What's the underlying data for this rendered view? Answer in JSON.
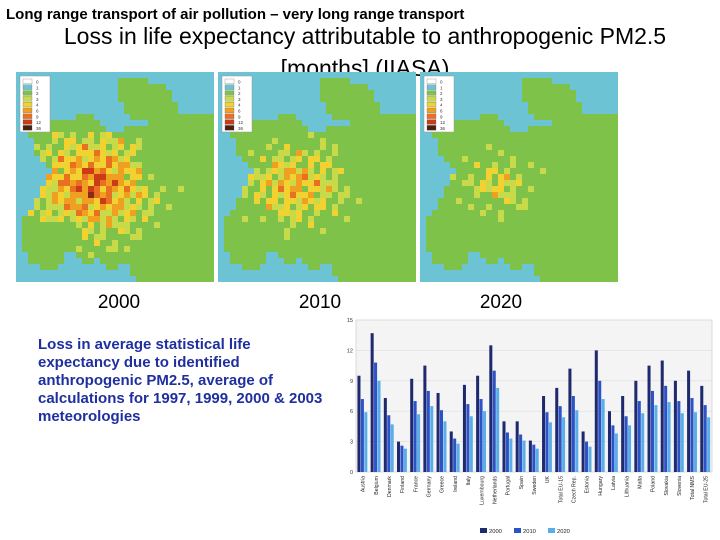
{
  "header": {
    "top_title": "Long range transport of air pollution – very long range transport",
    "subtitle": "Loss in life expectancy attributable to anthropogenic PM2.5 [months] (IIASA)"
  },
  "maps": [
    {
      "year": "2000",
      "legend": [
        "0",
        "1",
        "2",
        "3",
        "4",
        "6",
        "9",
        "12",
        "36"
      ],
      "level": 3
    },
    {
      "year": "2010",
      "legend": [
        "0",
        "1",
        "2",
        "3",
        "4",
        "6",
        "9",
        "12",
        "36"
      ],
      "level": 2
    },
    {
      "year": "2020",
      "legend": [
        "0",
        "1",
        "2",
        "3",
        "4",
        "6",
        "9",
        "12",
        "36"
      ],
      "level": 1
    }
  ],
  "palette": [
    "#ffffff",
    "#6cc3d4",
    "#2aa3b4",
    "#7fc24a",
    "#c8d94a",
    "#f2d230",
    "#f0a020",
    "#e87020",
    "#cc3a18",
    "#8a2a14",
    "#4a2010"
  ],
  "description": "Loss in average statistical life expectancy due to identified anthropogenic PM2.5, average of calculations for 1997, 1999, 2000 & 2003 meteorologies",
  "chart_data": {
    "type": "bar",
    "categories": [
      "Austria",
      "Belgium",
      "Denmark",
      "Finland",
      "France",
      "Germany",
      "Greece",
      "Ireland",
      "Italy",
      "Luxembourg",
      "Netherlands",
      "Portugal",
      "Spain",
      "Sweden",
      "UK",
      "Total EU-15",
      "Czech Rep.",
      "Estonia",
      "Hungary",
      "Latvia",
      "Lithuania",
      "Malta",
      "Poland",
      "Slovakia",
      "Slovenia",
      "Total NMS",
      "Total EU-25"
    ],
    "series": [
      {
        "name": "2000",
        "color": "#1f2a6e",
        "values": [
          9.5,
          13.7,
          7.3,
          3.0,
          9.2,
          10.5,
          7.8,
          4.0,
          8.6,
          9.5,
          12.5,
          5.0,
          5.0,
          3.1,
          7.5,
          8.3,
          10.2,
          4.0,
          12.0,
          6.0,
          7.5,
          9.0,
          10.5,
          11.0,
          9.0,
          10.0,
          8.5
        ]
      },
      {
        "name": "2010",
        "color": "#2c52c8",
        "values": [
          7.2,
          10.8,
          5.6,
          2.6,
          7.0,
          8.0,
          6.1,
          3.3,
          6.7,
          7.2,
          10.0,
          3.9,
          3.7,
          2.7,
          5.9,
          6.5,
          7.5,
          3.0,
          9.0,
          4.6,
          5.5,
          7.0,
          8.0,
          8.5,
          7.0,
          7.3,
          6.6
        ]
      },
      {
        "name": "2020",
        "color": "#5aaee8",
        "values": [
          5.9,
          9.0,
          4.7,
          2.3,
          5.7,
          6.5,
          5.0,
          2.8,
          5.5,
          6.0,
          8.3,
          3.3,
          3.1,
          2.3,
          4.9,
          5.4,
          6.1,
          2.5,
          7.2,
          3.8,
          4.6,
          5.8,
          6.6,
          6.9,
          5.8,
          5.9,
          5.4
        ]
      }
    ],
    "yticks": [
      "0",
      "3",
      "6",
      "9",
      "12",
      "15"
    ],
    "ylim": [
      0,
      15
    ]
  }
}
